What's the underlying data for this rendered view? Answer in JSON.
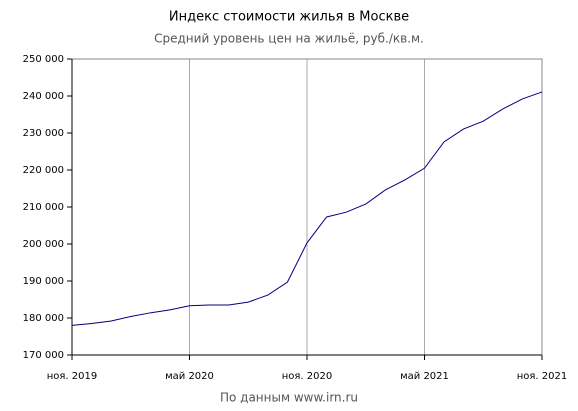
{
  "chart_data": {
    "type": "line",
    "title": "Индекс стоимости жилья в Москве",
    "subtitle": "Средний уровень цен на жильё, руб./кв.м.",
    "source": "По данным www.irn.ru",
    "x": [
      "2019-11",
      "2019-12",
      "2020-01",
      "2020-02",
      "2020-03",
      "2020-04",
      "2020-05",
      "2020-06",
      "2020-07",
      "2020-08",
      "2020-09",
      "2020-10",
      "2020-11",
      "2020-12",
      "2021-01",
      "2021-02",
      "2021-03",
      "2021-04",
      "2021-05",
      "2021-06",
      "2021-07",
      "2021-08",
      "2021-09",
      "2021-10",
      "2021-11"
    ],
    "values": [
      178000,
      178500,
      179200,
      180400,
      181400,
      182200,
      183300,
      183500,
      183500,
      184300,
      186200,
      189700,
      200300,
      207300,
      208600,
      210800,
      214600,
      217300,
      220500,
      227600,
      231100,
      233200,
      236500,
      239200,
      241100
    ],
    "color": "#000080",
    "ylim": [
      170000,
      250000
    ],
    "yticks": [
      {
        "value": 170000,
        "label": "170 000"
      },
      {
        "value": 180000,
        "label": "180 000"
      },
      {
        "value": 190000,
        "label": "190 000"
      },
      {
        "value": 200000,
        "label": "200 000"
      },
      {
        "value": 210000,
        "label": "210 000"
      },
      {
        "value": 220000,
        "label": "220 000"
      },
      {
        "value": 230000,
        "label": "230 000"
      },
      {
        "value": 240000,
        "label": "240 000"
      },
      {
        "value": 250000,
        "label": "250 000"
      }
    ],
    "xticks": [
      {
        "value": "2019-11",
        "label": "ноя. 2019"
      },
      {
        "value": "2020-05",
        "label": "май 2020"
      },
      {
        "value": "2020-11",
        "label": "ноя. 2020"
      },
      {
        "value": "2021-05",
        "label": "май 2021"
      },
      {
        "value": "2021-11",
        "label": "ноя. 2021"
      }
    ],
    "grid": true
  }
}
